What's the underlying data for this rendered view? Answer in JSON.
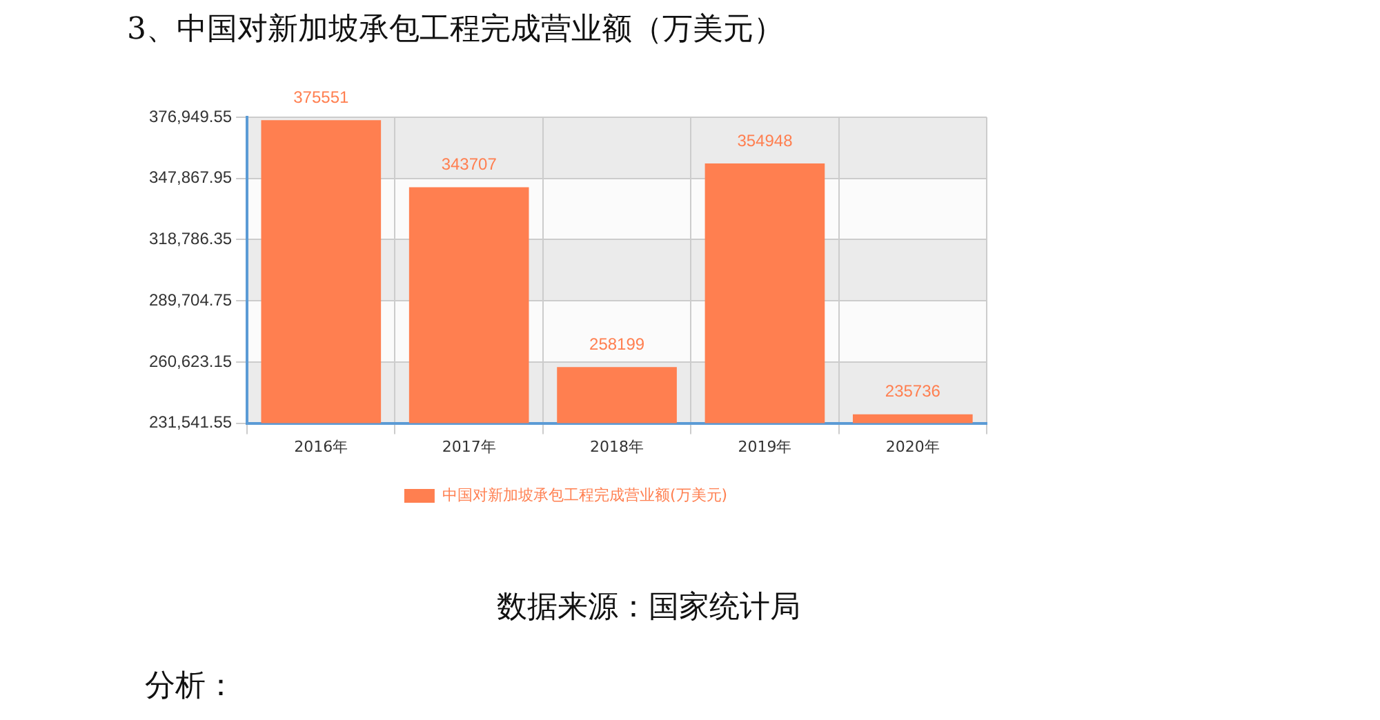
{
  "chart_data": {
    "type": "bar",
    "title": "3、中国对新加坡承包工程完成营业额（万美元）",
    "categories": [
      "2016年",
      "2017年",
      "2018年",
      "2019年",
      "2020年"
    ],
    "series": [
      {
        "name": "中国对新加坡承包工程完成营业额(万美元)",
        "color": "#ff7f50",
        "values": [
          375551,
          343707,
          258199,
          354948,
          235736
        ]
      }
    ],
    "ylim": [
      231541.55,
      376949.55
    ],
    "yticks": [
      {
        "value": 231541.55,
        "label": "231,541.55"
      },
      {
        "value": 260623.15,
        "label": "260,623.15"
      },
      {
        "value": 289704.75,
        "label": "289,704.75"
      },
      {
        "value": 318786.35,
        "label": "318,786.35"
      },
      {
        "value": 347867.95,
        "label": "347,867.95"
      },
      {
        "value": 376949.55,
        "label": "376,949.55"
      }
    ],
    "grid": true,
    "legend": "bottom",
    "data_labels": true,
    "annotations": [
      "数据来源：国家统计局",
      "分析："
    ]
  }
}
